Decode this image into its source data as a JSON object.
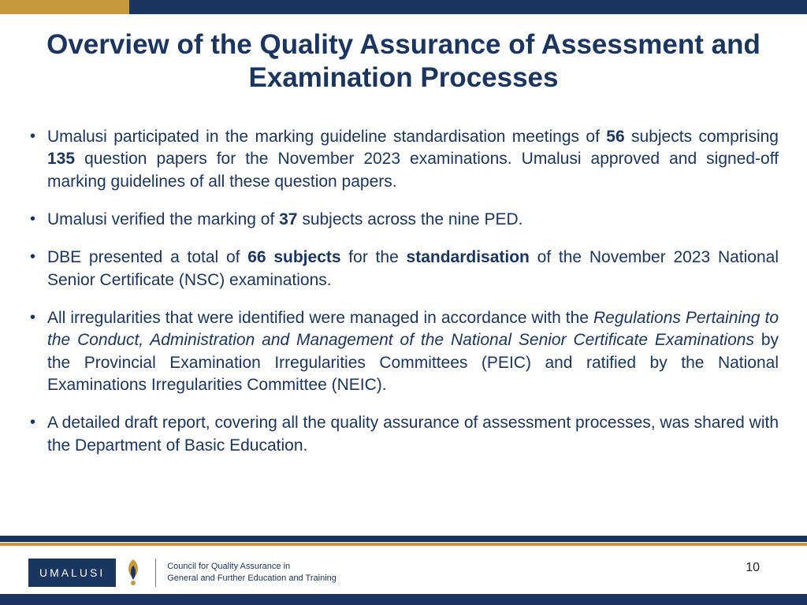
{
  "colors": {
    "navy": "#1a3560",
    "gold": "#c69a3b",
    "title": "#1a3560",
    "body_text": "#1a3560",
    "logo_bg": "#1a3560",
    "swirl1": "#c69a3b",
    "swirl2": "#1a3560"
  },
  "slide": {
    "title": "Overview of the Quality Assurance of Assessment and Examination  Processes",
    "page_number": "10"
  },
  "bullets": [
    {
      "html": "Umalusi participated in the marking guideline standardisation meetings of <b>56</b> subjects comprising <b>135</b> question papers for the November 2023 examinations. Umalusi approved and signed-off marking guidelines of all these question papers."
    },
    {
      "html": "Umalusi verified the marking of <b>37</b> subjects across the nine PED."
    },
    {
      "html": "DBE presented a total of <b>66 subjects</b> for the <b>standardisation</b> of the November 2023 National Senior Certificate (NSC) examinations."
    },
    {
      "html": "All irregularities that were identified were managed in accordance with the <i>Regulations Pertaining to the Conduct, Administration and Management of the National Senior Certificate Examinations</i> by the Provincial Examination Irregularities Committees (PEIC) and ratified by the National Examinations Irregularities Committee (NEIC)."
    },
    {
      "html": "A detailed draft report, covering all the quality assurance of assessment processes, was shared with the Department of Basic Education."
    }
  ],
  "logo": {
    "wordmark": "UMALUSI",
    "tagline_line1": "Council for Quality Assurance in",
    "tagline_line2": "General and Further Education and Training"
  }
}
